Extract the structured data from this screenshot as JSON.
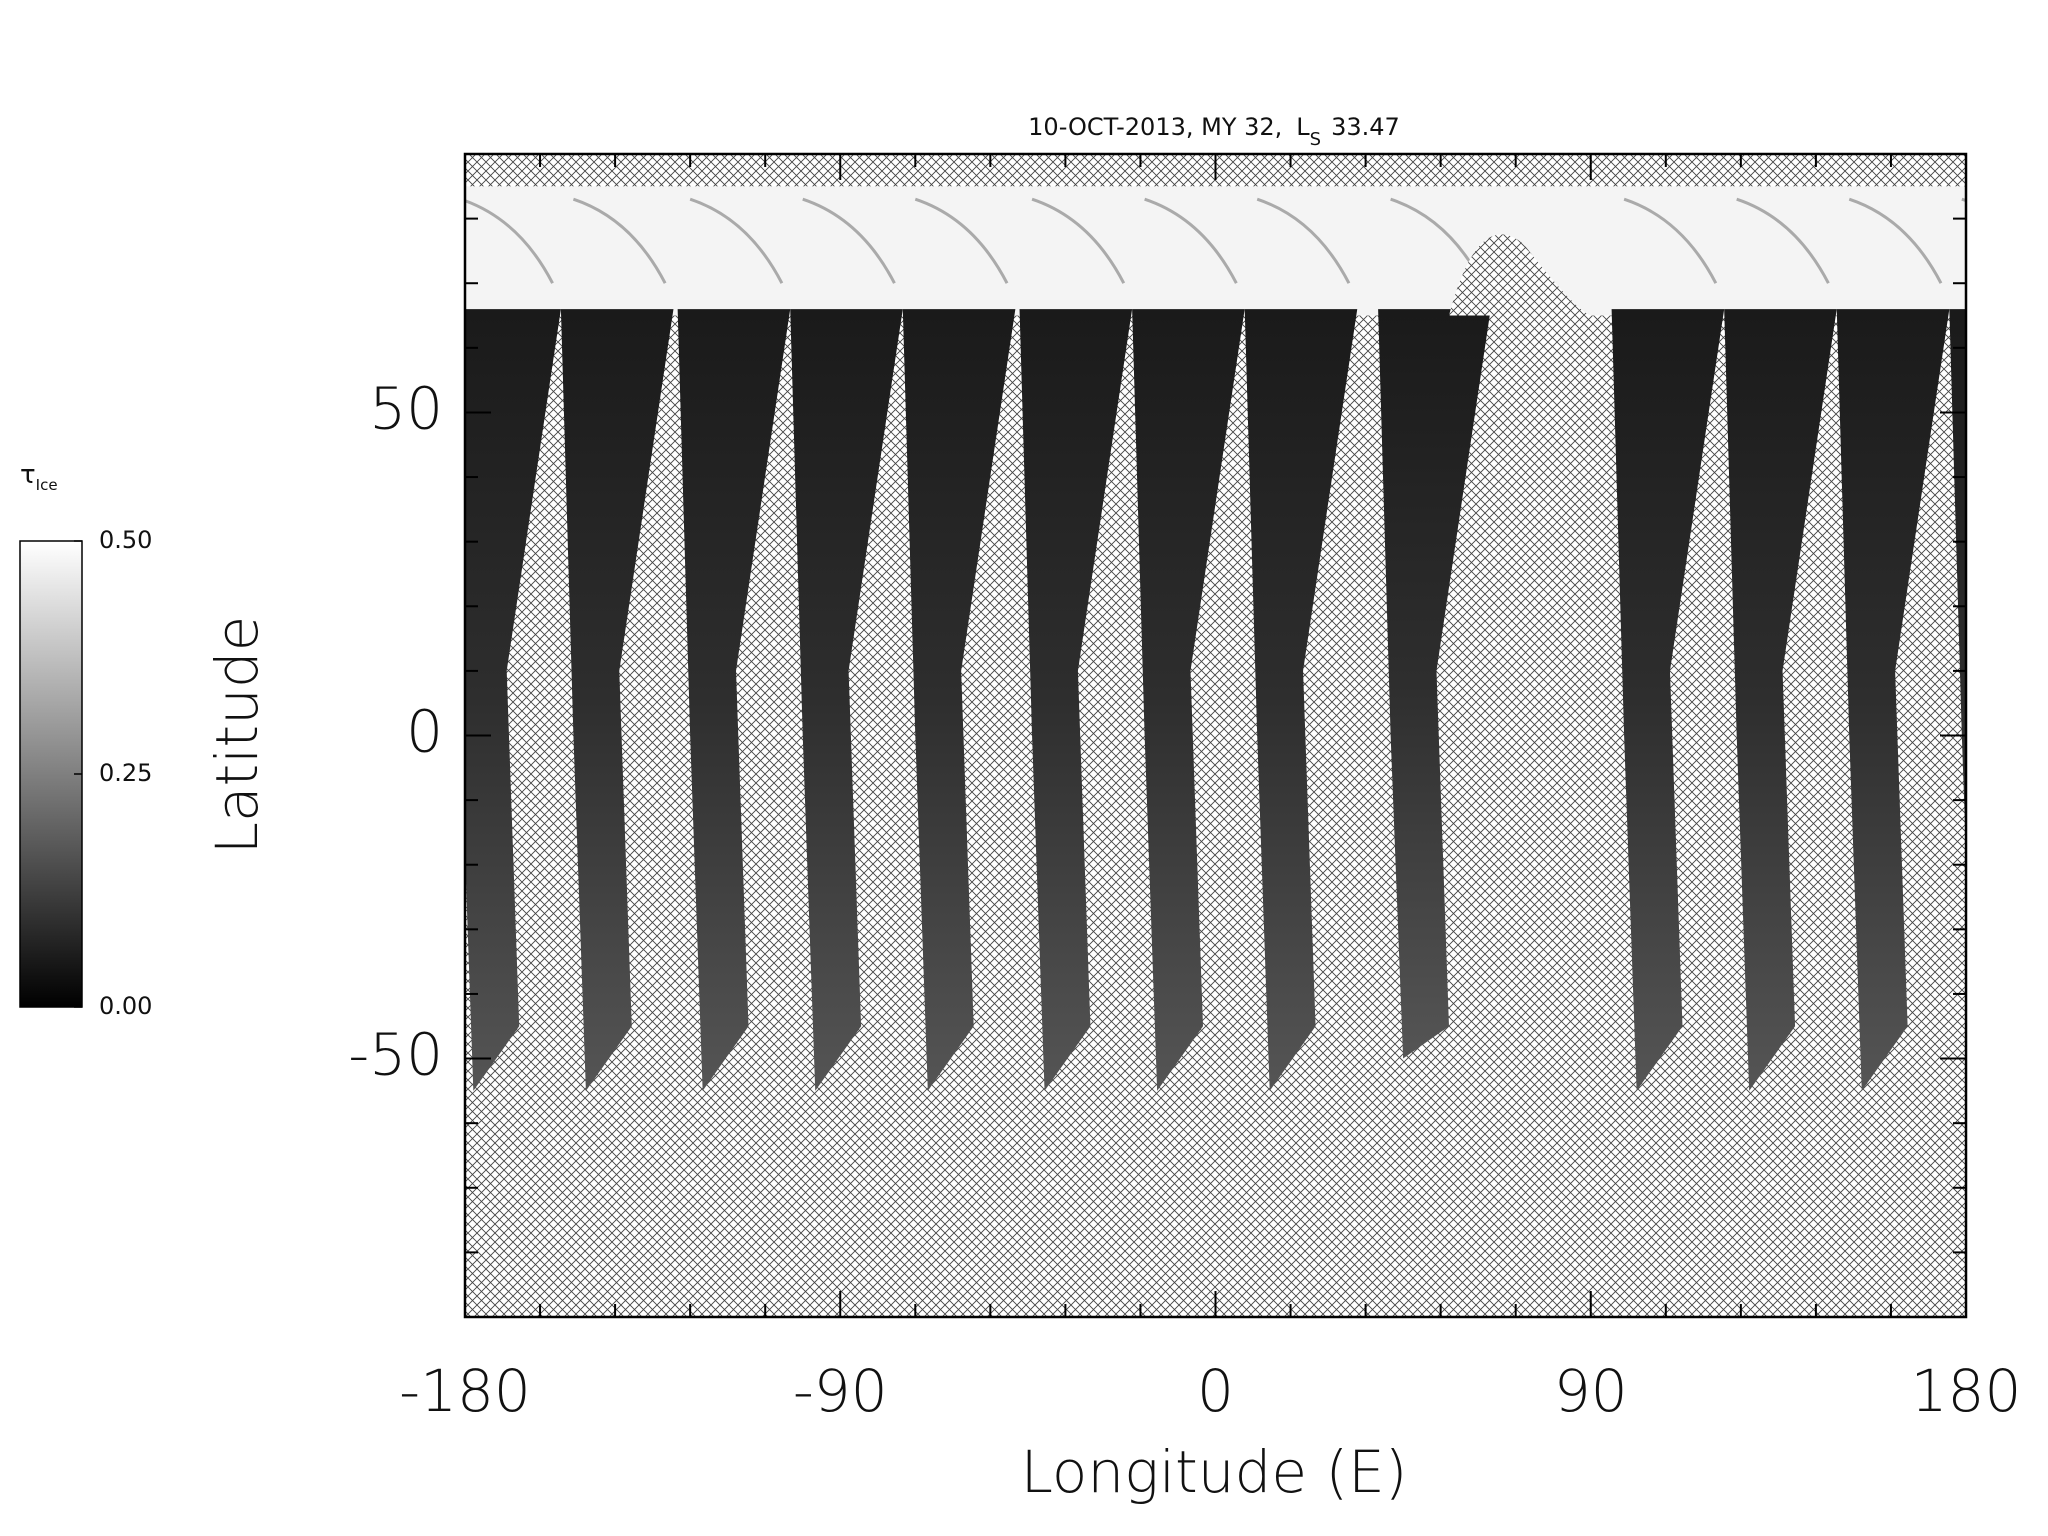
{
  "chart_data": {
    "type": "map",
    "title": "10-OCT-2013, MY 32,",
    "ls": {
      "label": "L",
      "subscript": "S",
      "value": 33.47
    },
    "x_label": "Longitude (E)",
    "y_label": "Latitude",
    "xlim": [
      -180,
      180
    ],
    "xticks": [
      -180,
      -90,
      0,
      90,
      180
    ],
    "xminorticks": [
      -162,
      -144,
      -126,
      -108,
      -72,
      -54,
      -36,
      -18,
      18,
      36,
      54,
      72,
      108,
      126,
      144,
      162
    ],
    "ylim": [
      -90,
      90
    ],
    "yticks": [
      -50,
      0,
      50
    ],
    "yminorticks": [
      -80,
      -70,
      -60,
      -40,
      -30,
      -20,
      -10,
      10,
      20,
      30,
      40,
      60,
      70,
      80
    ],
    "colorbar": {
      "label": "τ",
      "subscript": "Ice",
      "lim": [
        0,
        0.5
      ],
      "ticks": [
        {
          "value": 0,
          "label": "0.00"
        },
        {
          "value": 0.25,
          "label": "0.25"
        },
        {
          "value": 0.5,
          "label": "0.50"
        }
      ]
    }
  }
}
